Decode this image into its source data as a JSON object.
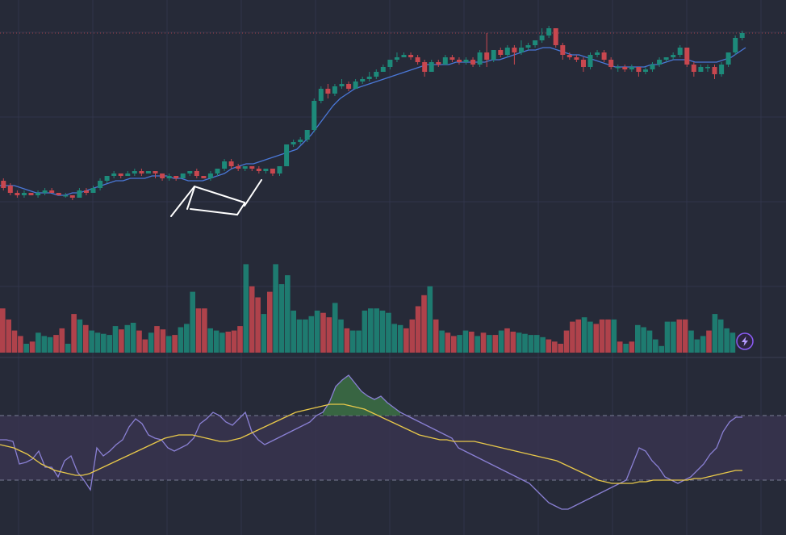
{
  "chart_data": [
    {
      "type": "candlestick",
      "pane": "price",
      "title": "",
      "ylim": [
        0,
        100
      ],
      "grid": true,
      "price_line_level": 93,
      "moving_average": {
        "values": [
          30,
          30,
          30,
          29,
          28,
          27,
          27,
          27,
          26,
          26,
          27,
          27,
          28,
          29,
          30,
          31,
          32,
          32,
          33,
          33,
          33,
          34,
          34,
          34,
          33,
          33,
          32,
          32,
          32,
          33,
          34,
          35,
          37,
          38,
          39,
          39,
          40,
          41,
          42,
          43,
          44,
          45,
          48,
          51,
          55,
          59,
          63,
          66,
          68,
          70,
          71,
          72,
          73,
          74,
          75,
          76,
          77,
          78,
          79,
          80,
          80,
          80,
          80,
          81,
          81,
          81,
          81,
          81,
          82,
          82,
          83,
          84,
          85,
          86,
          86,
          87,
          87,
          86,
          85,
          84,
          84,
          83,
          82,
          81,
          80,
          79,
          79,
          79,
          79,
          79,
          80,
          80,
          81,
          82,
          82,
          82,
          81,
          81,
          81,
          81,
          82,
          83,
          85,
          87
        ]
      },
      "candles": [
        [
          32,
          29,
          33,
          28
        ],
        [
          30,
          27,
          31,
          26
        ],
        [
          27,
          26,
          28,
          25
        ],
        [
          26,
          27,
          28,
          25
        ],
        [
          27,
          26,
          27,
          26
        ],
        [
          26,
          27,
          28,
          25
        ],
        [
          27,
          28,
          29,
          26
        ],
        [
          28,
          27,
          29,
          27
        ],
        [
          27,
          26,
          27,
          26
        ],
        [
          26,
          26,
          27,
          25
        ],
        [
          26,
          25,
          26,
          24
        ],
        [
          25,
          28,
          29,
          25
        ],
        [
          28,
          27,
          29,
          26
        ],
        [
          27,
          29,
          30,
          27
        ],
        [
          29,
          32,
          33,
          28
        ],
        [
          32,
          34,
          34,
          31
        ],
        [
          34,
          35,
          36,
          33
        ],
        [
          35,
          34,
          35,
          33
        ],
        [
          34,
          35,
          36,
          34
        ],
        [
          35,
          36,
          37,
          34
        ],
        [
          36,
          35,
          37,
          34
        ],
        [
          35,
          36,
          36,
          35
        ],
        [
          36,
          35,
          36,
          33
        ],
        [
          35,
          33,
          35,
          32
        ],
        [
          33,
          34,
          35,
          32
        ],
        [
          34,
          33,
          34,
          32
        ],
        [
          33,
          35,
          35,
          33
        ],
        [
          35,
          36,
          36,
          34
        ],
        [
          36,
          34,
          37,
          33
        ],
        [
          34,
          33,
          34,
          33
        ],
        [
          33,
          35,
          36,
          32
        ],
        [
          35,
          37,
          37,
          34
        ],
        [
          37,
          40,
          41,
          36
        ],
        [
          40,
          38,
          41,
          37
        ],
        [
          38,
          37,
          39,
          36
        ],
        [
          37,
          38,
          38,
          36
        ],
        [
          38,
          37,
          38,
          36
        ],
        [
          37,
          36,
          38,
          35
        ],
        [
          36,
          37,
          37,
          35
        ],
        [
          37,
          35,
          37,
          34
        ],
        [
          35,
          38,
          38,
          34
        ],
        [
          38,
          47,
          47,
          38
        ],
        [
          47,
          48,
          49,
          46
        ],
        [
          48,
          49,
          50,
          47
        ],
        [
          49,
          53,
          53,
          48
        ],
        [
          53,
          65,
          66,
          52
        ],
        [
          65,
          70,
          71,
          64
        ],
        [
          70,
          68,
          72,
          66
        ],
        [
          68,
          71,
          72,
          67
        ],
        [
          71,
          72,
          74,
          70
        ],
        [
          72,
          70,
          73,
          69
        ],
        [
          70,
          73,
          74,
          70
        ],
        [
          73,
          74,
          75,
          72
        ],
        [
          74,
          75,
          77,
          73
        ],
        [
          75,
          77,
          78,
          74
        ],
        [
          77,
          79,
          80,
          77
        ],
        [
          79,
          82,
          82,
          78
        ],
        [
          82,
          83,
          85,
          81
        ],
        [
          83,
          84,
          85,
          83
        ],
        [
          84,
          83,
          85,
          82
        ],
        [
          83,
          81,
          84,
          80
        ],
        [
          81,
          77,
          82,
          75
        ],
        [
          77,
          81,
          82,
          77
        ],
        [
          81,
          80,
          82,
          79
        ],
        [
          80,
          83,
          84,
          80
        ],
        [
          83,
          82,
          84,
          81
        ],
        [
          82,
          81,
          83,
          80
        ],
        [
          81,
          82,
          83,
          80
        ],
        [
          82,
          80,
          83,
          79
        ],
        [
          80,
          85,
          86,
          79
        ],
        [
          85,
          82,
          93,
          79
        ],
        [
          82,
          86,
          86,
          81
        ],
        [
          86,
          84,
          87,
          83
        ],
        [
          84,
          87,
          88,
          83
        ],
        [
          87,
          85,
          88,
          80
        ],
        [
          85,
          87,
          90,
          84
        ],
        [
          87,
          88,
          89,
          86
        ],
        [
          88,
          90,
          90,
          87
        ],
        [
          90,
          92,
          95,
          89
        ],
        [
          92,
          95,
          96,
          91
        ],
        [
          95,
          88,
          95,
          87
        ],
        [
          88,
          84,
          89,
          82
        ],
        [
          84,
          83,
          85,
          82
        ],
        [
          83,
          82,
          84,
          81
        ],
        [
          82,
          79,
          83,
          77
        ],
        [
          79,
          84,
          85,
          78
        ],
        [
          84,
          85,
          86,
          83
        ],
        [
          85,
          82,
          86,
          81
        ],
        [
          82,
          79,
          83,
          78
        ],
        [
          79,
          79,
          80,
          77
        ],
        [
          79,
          78,
          80,
          77
        ],
        [
          78,
          79,
          80,
          77
        ],
        [
          79,
          77,
          79,
          75
        ],
        [
          77,
          78,
          79,
          76
        ],
        [
          78,
          80,
          81,
          77
        ],
        [
          80,
          82,
          83,
          79
        ],
        [
          82,
          83,
          83,
          81
        ],
        [
          83,
          84,
          85,
          82
        ],
        [
          84,
          87,
          88,
          83
        ],
        [
          87,
          80,
          87,
          79
        ],
        [
          80,
          77,
          81,
          75
        ],
        [
          77,
          79,
          80,
          77
        ],
        [
          79,
          79,
          80,
          77
        ],
        [
          79,
          76,
          80,
          74
        ],
        [
          76,
          80,
          81,
          75
        ],
        [
          80,
          85,
          85,
          79
        ],
        [
          85,
          91,
          92,
          84
        ],
        [
          91,
          93,
          94,
          90
        ]
      ]
    },
    {
      "type": "bar",
      "pane": "volume",
      "ylim": [
        0,
        100
      ],
      "values": [
        40,
        30,
        20,
        15,
        8,
        10,
        18,
        15,
        14,
        16,
        22,
        8,
        35,
        30,
        25,
        20,
        18,
        17,
        16,
        24,
        21,
        25,
        27,
        20,
        12,
        18,
        24,
        21,
        15,
        16,
        23,
        26,
        55,
        40,
        40,
        22,
        20,
        18,
        19,
        20,
        24,
        80,
        60,
        50,
        35,
        55,
        80,
        62,
        70,
        38,
        30,
        30,
        33,
        38,
        36,
        32,
        45,
        30,
        22,
        20,
        20,
        38,
        40,
        40,
        38,
        36,
        26,
        25,
        22,
        30,
        42,
        52,
        60,
        30,
        20,
        18,
        15,
        16,
        20,
        19,
        15,
        18,
        16,
        16,
        20,
        22,
        19,
        18,
        17,
        16,
        16,
        14,
        12,
        10,
        8,
        20,
        28,
        30,
        32,
        28,
        26,
        30,
        30,
        30,
        10,
        8,
        10,
        25,
        23,
        20,
        12,
        6,
        28,
        28,
        30,
        30,
        20,
        12,
        15,
        20,
        35,
        30,
        22,
        18
      ]
    },
    {
      "type": "line",
      "pane": "oscillator",
      "ylim": [
        0,
        100
      ],
      "reference_levels": [
        70,
        30
      ],
      "series": [
        {
          "values": [
            55,
            55,
            54,
            40,
            41,
            43,
            48,
            38,
            38,
            32,
            42,
            45,
            35,
            30,
            24,
            50,
            45,
            48,
            52,
            55,
            63,
            68,
            65,
            58,
            56,
            55,
            50,
            48,
            50,
            52,
            56,
            65,
            68,
            72,
            70,
            66,
            64,
            68,
            72,
            60,
            55,
            52,
            54,
            56,
            58,
            60,
            62,
            64,
            66,
            70,
            72,
            78,
            88,
            92,
            95,
            90,
            85,
            82,
            80,
            82,
            78,
            75,
            72,
            70,
            68,
            66,
            64,
            62,
            60,
            58,
            56,
            50,
            48,
            46,
            44,
            42,
            40,
            38,
            36,
            34,
            32,
            30,
            28,
            24,
            20,
            16,
            14,
            12,
            12,
            14,
            16,
            18,
            20,
            22,
            24,
            26,
            28,
            30,
            40,
            50,
            48,
            42,
            38,
            32,
            30,
            28,
            30,
            32,
            36,
            40,
            46,
            50,
            60,
            66,
            69,
            69
          ]
        },
        {
          "values": [
            52,
            51,
            50,
            48,
            46,
            43,
            40,
            38,
            36,
            35,
            34,
            33,
            33,
            34,
            36,
            38,
            40,
            42,
            44,
            46,
            48,
            50,
            52,
            54,
            56,
            57,
            58,
            58,
            58,
            57,
            56,
            55,
            54,
            54,
            55,
            56,
            58,
            60,
            62,
            64,
            66,
            68,
            70,
            72,
            73,
            74,
            75,
            76,
            77,
            77,
            77,
            76,
            75,
            74,
            72,
            70,
            68,
            66,
            64,
            62,
            60,
            58,
            57,
            56,
            55,
            55,
            54,
            54,
            54,
            54,
            53,
            52,
            51,
            50,
            49,
            48,
            47,
            46,
            45,
            44,
            43,
            42,
            40,
            38,
            36,
            34,
            32,
            30,
            29,
            28,
            28,
            28,
            28,
            29,
            29,
            30,
            30,
            30,
            30,
            30,
            30,
            31,
            31,
            32,
            33,
            34,
            35,
            36,
            36
          ]
        }
      ]
    }
  ],
  "badge": {
    "icon": "lightning-icon",
    "color": "#8b5cf6"
  },
  "colors": {
    "background": "#262a38",
    "up": "#1d8a7a",
    "down": "#c8474f",
    "moving_average": "#4a78d8",
    "rsi_line": "#8a80d4",
    "rsi_ma": "#e9c94a",
    "rsi_band": "#3a3550",
    "grid": "#30344a"
  }
}
